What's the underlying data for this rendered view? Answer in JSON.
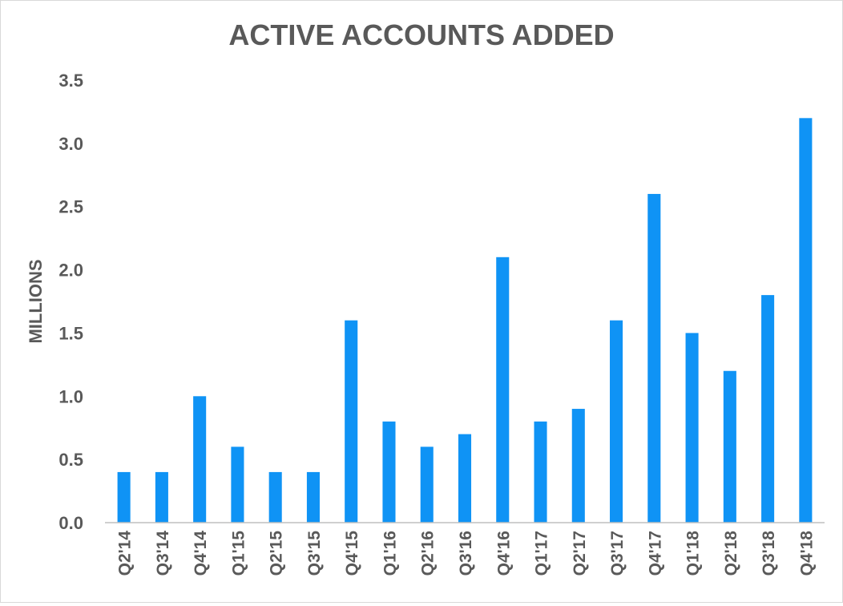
{
  "chart_data": {
    "type": "bar",
    "title": "ACTIVE ACCOUNTS ADDED",
    "xlabel": "",
    "ylabel": "MILLIONS",
    "categories": [
      "Q2'14",
      "Q3'14",
      "Q4'14",
      "Q1'15",
      "Q2'15",
      "Q3'15",
      "Q4'15",
      "Q1'16",
      "Q2'16",
      "Q3'16",
      "Q4'16",
      "Q1'17",
      "Q2'17",
      "Q3'17",
      "Q4'17",
      "Q1'18",
      "Q2'18",
      "Q3'18",
      "Q4'18"
    ],
    "values": [
      0.4,
      0.4,
      1.0,
      0.6,
      0.4,
      0.4,
      1.6,
      0.8,
      0.6,
      0.7,
      2.1,
      0.8,
      0.9,
      1.6,
      2.6,
      1.5,
      1.2,
      1.8,
      3.2
    ],
    "ylim": [
      0,
      3.5
    ],
    "yticks": [
      "0.0",
      "0.5",
      "1.0",
      "1.5",
      "2.0",
      "2.5",
      "3.0",
      "3.5"
    ],
    "grid": false,
    "legend": "none",
    "bar_color": "#0f93f5",
    "axis_color": "#bfbfbf",
    "text_color": "#595959"
  }
}
